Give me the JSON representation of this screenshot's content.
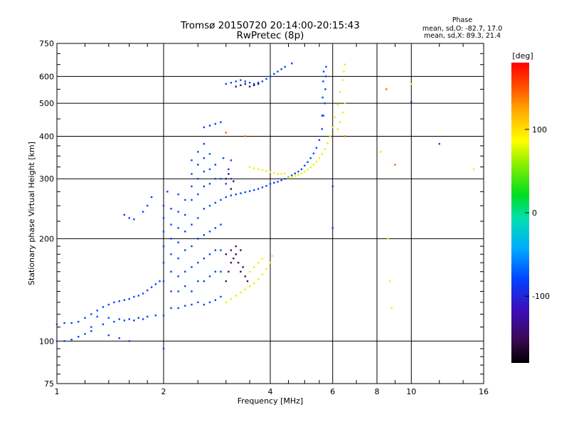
{
  "chart_data": {
    "type": "scatter",
    "title": "Tromsø 20150720 20:14:00-20:15:43",
    "subtitle": "RwPretec (8p)",
    "xlabel": "Frequency [MHz]",
    "ylabel": "Stationary phase Virtual Height [km]",
    "xscale": "log",
    "yscale": "log",
    "xlim": [
      1,
      16
    ],
    "ylim": [
      75,
      750
    ],
    "xticks": [
      1,
      2,
      4,
      6,
      8,
      10,
      16
    ],
    "yticks": [
      75,
      100,
      200,
      300,
      400,
      500,
      600,
      750
    ],
    "x_tick_labels": [
      "1",
      "2",
      "4",
      "6",
      "8",
      "10",
      "16"
    ],
    "y_tick_labels": [
      "75",
      "100",
      "200",
      "300",
      "400",
      "500",
      "600",
      "750"
    ],
    "grid": true,
    "stats": {
      "heading": "Phase",
      "o_mode": "mean, sd,O: -82.7, 17.0",
      "x_mode": "mean, sd,X: 89.3, 21.4"
    },
    "colorbar": {
      "label": "[deg]",
      "range": [
        -180,
        180
      ],
      "ticks": [
        100,
        0,
        -100
      ],
      "tick_labels": [
        "100",
        "0",
        "-100"
      ]
    },
    "series": [
      {
        "mode": "O",
        "color_phase": -100,
        "points": [
          [
            1.0,
            100
          ],
          [
            1.05,
            100
          ],
          [
            1.1,
            101
          ],
          [
            1.15,
            103
          ],
          [
            1.2,
            105
          ],
          [
            1.25,
            107
          ],
          [
            1.0,
            112
          ],
          [
            1.05,
            113
          ],
          [
            1.1,
            113
          ],
          [
            1.15,
            114
          ],
          [
            1.2,
            117
          ],
          [
            1.25,
            120
          ],
          [
            1.3,
            123
          ],
          [
            1.35,
            126
          ],
          [
            1.4,
            128
          ],
          [
            1.45,
            130
          ],
          [
            1.5,
            131
          ],
          [
            1.55,
            132
          ],
          [
            1.6,
            133
          ],
          [
            1.65,
            135
          ],
          [
            1.7,
            136
          ],
          [
            1.75,
            138
          ],
          [
            1.8,
            141
          ],
          [
            1.85,
            144
          ],
          [
            1.9,
            147
          ],
          [
            1.95,
            150
          ],
          [
            1.3,
            118
          ],
          [
            1.4,
            117
          ],
          [
            1.5,
            116
          ],
          [
            1.6,
            116
          ],
          [
            1.7,
            117
          ],
          [
            1.8,
            118
          ],
          [
            1.9,
            119
          ],
          [
            2.0,
            119
          ],
          [
            1.25,
            110
          ],
          [
            1.35,
            112
          ],
          [
            1.45,
            114
          ],
          [
            1.55,
            115
          ],
          [
            1.65,
            115
          ],
          [
            1.75,
            116
          ],
          [
            1.55,
            235
          ],
          [
            1.6,
            230
          ],
          [
            1.65,
            228
          ],
          [
            1.75,
            240
          ],
          [
            1.8,
            250
          ],
          [
            1.85,
            265
          ],
          [
            2.0,
            150
          ],
          [
            2.0,
            170
          ],
          [
            2.0,
            190
          ],
          [
            2.0,
            210
          ],
          [
            2.0,
            230
          ],
          [
            2.0,
            250
          ],
          [
            2.05,
            275
          ],
          [
            2.1,
            125
          ],
          [
            2.1,
            140
          ],
          [
            2.1,
            160
          ],
          [
            2.1,
            180
          ],
          [
            2.1,
            200
          ],
          [
            2.1,
            220
          ],
          [
            2.1,
            245
          ],
          [
            2.2,
            125
          ],
          [
            2.2,
            140
          ],
          [
            2.2,
            155
          ],
          [
            2.2,
            175
          ],
          [
            2.2,
            195
          ],
          [
            2.2,
            215
          ],
          [
            2.2,
            240
          ],
          [
            2.2,
            270
          ],
          [
            2.3,
            127
          ],
          [
            2.3,
            145
          ],
          [
            2.3,
            160
          ],
          [
            2.3,
            185
          ],
          [
            2.3,
            210
          ],
          [
            2.3,
            235
          ],
          [
            2.3,
            260
          ],
          [
            2.4,
            128
          ],
          [
            2.4,
            140
          ],
          [
            2.4,
            165
          ],
          [
            2.4,
            190
          ],
          [
            2.4,
            220
          ],
          [
            2.4,
            260
          ],
          [
            2.4,
            285
          ],
          [
            2.4,
            310
          ],
          [
            2.4,
            340
          ],
          [
            2.5,
            130
          ],
          [
            2.5,
            150
          ],
          [
            2.5,
            170
          ],
          [
            2.5,
            200
          ],
          [
            2.5,
            230
          ],
          [
            2.5,
            270
          ],
          [
            2.5,
            300
          ],
          [
            2.5,
            330
          ],
          [
            2.5,
            360
          ],
          [
            2.6,
            128
          ],
          [
            2.6,
            150
          ],
          [
            2.6,
            175
          ],
          [
            2.6,
            205
          ],
          [
            2.6,
            245
          ],
          [
            2.6,
            285
          ],
          [
            2.6,
            315
          ],
          [
            2.6,
            345
          ],
          [
            2.6,
            380
          ],
          [
            2.7,
            130
          ],
          [
            2.7,
            155
          ],
          [
            2.7,
            180
          ],
          [
            2.7,
            210
          ],
          [
            2.7,
            250
          ],
          [
            2.7,
            290
          ],
          [
            2.7,
            320
          ],
          [
            2.7,
            355
          ],
          [
            2.8,
            132
          ],
          [
            2.8,
            160
          ],
          [
            2.8,
            185
          ],
          [
            2.8,
            215
          ],
          [
            2.8,
            255
          ],
          [
            2.8,
            300
          ],
          [
            2.8,
            330
          ],
          [
            2.9,
            135
          ],
          [
            2.9,
            160
          ],
          [
            2.9,
            185
          ],
          [
            2.9,
            220
          ],
          [
            2.9,
            260
          ],
          [
            2.9,
            300
          ],
          [
            2.95,
            345
          ],
          [
            2.6,
            425
          ],
          [
            2.7,
            430
          ],
          [
            2.8,
            435
          ],
          [
            2.9,
            440
          ],
          [
            3.0,
            265
          ],
          [
            3.1,
            268
          ],
          [
            3.2,
            270
          ],
          [
            3.3,
            272
          ],
          [
            3.4,
            274
          ],
          [
            3.5,
            276
          ],
          [
            3.6,
            278
          ],
          [
            3.7,
            280
          ],
          [
            3.8,
            283
          ],
          [
            3.9,
            286
          ],
          [
            4.0,
            290
          ],
          [
            4.1,
            292
          ],
          [
            4.2,
            294
          ],
          [
            4.3,
            297
          ],
          [
            4.4,
            300
          ],
          [
            4.5,
            303
          ],
          [
            4.6,
            307
          ],
          [
            4.7,
            311
          ],
          [
            4.8,
            315
          ],
          [
            4.9,
            320
          ],
          [
            5.0,
            328
          ],
          [
            5.1,
            336
          ],
          [
            5.2,
            345
          ],
          [
            5.3,
            356
          ],
          [
            5.4,
            370
          ],
          [
            5.5,
            390
          ],
          [
            5.6,
            420
          ],
          [
            5.65,
            460
          ],
          [
            5.7,
            500
          ],
          [
            5.72,
            550
          ],
          [
            5.74,
            600
          ],
          [
            5.75,
            640
          ],
          [
            3.0,
            290
          ],
          [
            3.1,
            300
          ],
          [
            3.05,
            320
          ],
          [
            3.1,
            340
          ],
          [
            5.6,
            460
          ],
          [
            5.62,
            520
          ],
          [
            5.64,
            580
          ],
          [
            5.66,
            620
          ],
          [
            3.0,
            570
          ],
          [
            3.1,
            575
          ],
          [
            3.2,
            580
          ],
          [
            3.3,
            585
          ],
          [
            3.4,
            580
          ],
          [
            3.5,
            575
          ],
          [
            3.6,
            570
          ],
          [
            3.7,
            575
          ],
          [
            3.8,
            580
          ],
          [
            3.9,
            590
          ],
          [
            4.0,
            600
          ],
          [
            4.1,
            610
          ],
          [
            4.2,
            620
          ],
          [
            4.3,
            630
          ],
          [
            4.4,
            640
          ],
          [
            4.6,
            655
          ],
          [
            1.4,
            104
          ],
          [
            1.5,
            102
          ],
          [
            1.6,
            100
          ],
          [
            2.0,
            95
          ],
          [
            6.0,
            285
          ],
          [
            6.0,
            215
          ],
          [
            10.0,
            505
          ],
          [
            12.0,
            380
          ]
        ]
      },
      {
        "mode": "purple",
        "color_phase": -150,
        "points": [
          [
            3.0,
            150
          ],
          [
            3.05,
            160
          ],
          [
            3.1,
            170
          ],
          [
            3.15,
            175
          ],
          [
            3.2,
            180
          ],
          [
            3.25,
            170
          ],
          [
            3.3,
            160
          ],
          [
            3.35,
            165
          ],
          [
            3.4,
            155
          ],
          [
            3.45,
            150
          ],
          [
            3.0,
            180
          ],
          [
            3.1,
            185
          ],
          [
            3.2,
            190
          ],
          [
            3.3,
            185
          ],
          [
            3.0,
            300
          ],
          [
            3.05,
            310
          ],
          [
            3.1,
            280
          ],
          [
            3.15,
            295
          ],
          [
            3.2,
            560
          ],
          [
            3.3,
            565
          ],
          [
            3.4,
            570
          ],
          [
            3.5,
            560
          ],
          [
            3.6,
            565
          ],
          [
            3.7,
            570
          ]
        ]
      },
      {
        "mode": "X",
        "color_phase": 95,
        "points": [
          [
            3.0,
            130
          ],
          [
            3.1,
            133
          ],
          [
            3.2,
            136
          ],
          [
            3.3,
            139
          ],
          [
            3.4,
            142
          ],
          [
            3.5,
            145
          ],
          [
            3.6,
            148
          ],
          [
            3.7,
            152
          ],
          [
            3.8,
            157
          ],
          [
            3.9,
            163
          ],
          [
            4.0,
            170
          ],
          [
            4.05,
            178
          ],
          [
            3.5,
            160
          ],
          [
            3.6,
            165
          ],
          [
            3.7,
            170
          ],
          [
            3.8,
            175
          ],
          [
            3.5,
            325
          ],
          [
            3.6,
            322
          ],
          [
            3.7,
            320
          ],
          [
            3.8,
            318
          ],
          [
            3.9,
            316
          ],
          [
            4.0,
            314
          ],
          [
            4.1,
            312
          ],
          [
            4.2,
            310
          ],
          [
            4.3,
            310
          ],
          [
            4.4,
            311
          ],
          [
            4.5,
            302
          ],
          [
            4.6,
            304
          ],
          [
            4.7,
            306
          ],
          [
            4.8,
            308
          ],
          [
            4.9,
            311
          ],
          [
            5.0,
            315
          ],
          [
            5.1,
            319
          ],
          [
            5.2,
            324
          ],
          [
            5.3,
            330
          ],
          [
            5.4,
            337
          ],
          [
            5.5,
            345
          ],
          [
            5.6,
            355
          ],
          [
            5.7,
            367
          ],
          [
            5.8,
            382
          ],
          [
            5.9,
            400
          ],
          [
            6.0,
            425
          ],
          [
            6.1,
            455
          ],
          [
            6.2,
            495
          ],
          [
            6.3,
            540
          ],
          [
            6.4,
            585
          ],
          [
            6.45,
            620
          ],
          [
            6.5,
            650
          ],
          [
            6.2,
            420
          ],
          [
            6.3,
            440
          ],
          [
            6.4,
            470
          ],
          [
            6.5,
            500
          ],
          [
            8.2,
            360
          ],
          [
            8.6,
            200
          ],
          [
            8.7,
            150
          ],
          [
            8.8,
            125
          ],
          [
            10.0,
            570
          ],
          [
            15.0,
            320
          ]
        ]
      },
      {
        "mode": "red",
        "color_phase": 160,
        "points": [
          [
            3.0,
            410
          ],
          [
            3.4,
            400
          ],
          [
            8.5,
            550
          ],
          [
            6.5,
            400
          ],
          [
            9.0,
            330
          ]
        ]
      }
    ]
  }
}
